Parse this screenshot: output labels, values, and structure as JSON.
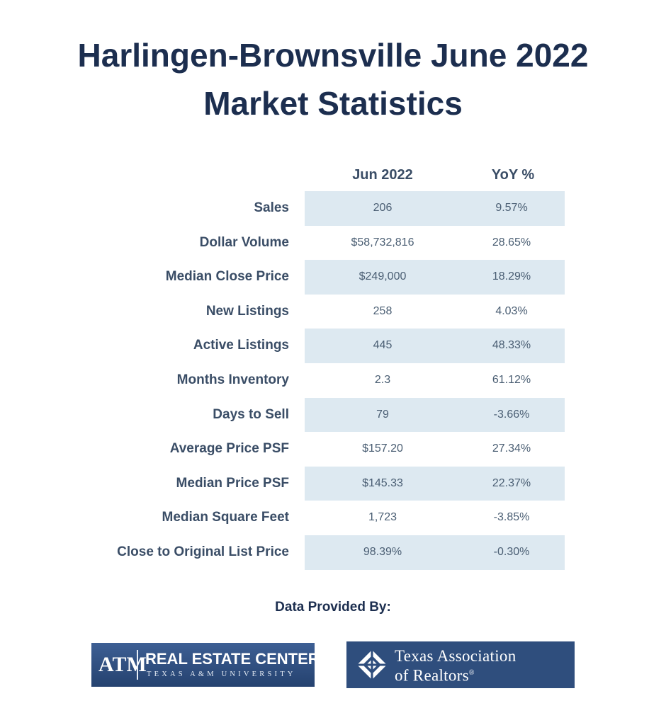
{
  "title": {
    "line1": "Harlingen-Brownsville June 2022",
    "line2": "Market Statistics"
  },
  "columns": {
    "current": "Jun 2022",
    "yoy": "YoY %"
  },
  "rows": [
    {
      "label": "Sales",
      "value": "206",
      "yoy": "9.57%"
    },
    {
      "label": "Dollar Volume",
      "value": "$58,732,816",
      "yoy": "28.65%"
    },
    {
      "label": "Median Close Price",
      "value": "$249,000",
      "yoy": "18.29%"
    },
    {
      "label": "New Listings",
      "value": "258",
      "yoy": "4.03%"
    },
    {
      "label": "Active Listings",
      "value": "445",
      "yoy": "48.33%"
    },
    {
      "label": "Months Inventory",
      "value": "2.3",
      "yoy": "61.12%"
    },
    {
      "label": "Days to Sell",
      "value": "79",
      "yoy": "-3.66%"
    },
    {
      "label": "Average Price PSF",
      "value": "$157.20",
      "yoy": "27.34%"
    },
    {
      "label": "Median Price PSF",
      "value": "$145.33",
      "yoy": "22.37%"
    },
    {
      "label": "Median Square Feet",
      "value": "1,723",
      "yoy": "-3.85%"
    },
    {
      "label": "Close to Original List Price",
      "value": "98.39%",
      "yoy": "-0.30%"
    }
  ],
  "footer": {
    "provided_by": "Data Provided By:",
    "logo_left": {
      "mark": "ATM",
      "name": "REAL ESTATE CENTER",
      "sub": "TEXAS A&M UNIVERSITY"
    },
    "logo_right": {
      "line1": "Texas Association",
      "line2": "of Realtors",
      "reg": "®"
    }
  },
  "colors": {
    "title": "#1c2e4f",
    "label": "#3a4d66",
    "shaded_row": "#dde9f1",
    "logo_bg": "#2f4e7d"
  }
}
